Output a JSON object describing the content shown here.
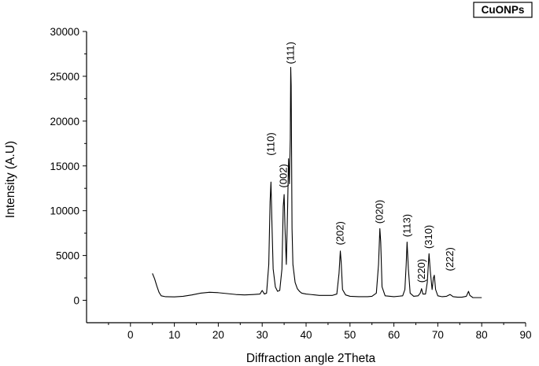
{
  "chart_data": {
    "type": "line",
    "xlabel": "Diffraction angle  2Theta",
    "ylabel": "Intensity (A.U)",
    "xlim": [
      -10,
      90
    ],
    "ylim": [
      -2500,
      30000
    ],
    "x_ticks": [
      0,
      10,
      20,
      30,
      40,
      50,
      60,
      70,
      80,
      90
    ],
    "y_ticks": [
      0,
      5000,
      10000,
      15000,
      20000,
      25000,
      30000
    ],
    "grid": false,
    "legend": {
      "label": "CuONPs",
      "position": "top-right"
    },
    "series": [
      {
        "name": "CuONPs",
        "color": "#000000",
        "points": [
          [
            5.0,
            3000
          ],
          [
            5.5,
            2400
          ],
          [
            6.0,
            1600
          ],
          [
            6.5,
            900
          ],
          [
            7.0,
            500
          ],
          [
            8.0,
            400
          ],
          [
            10.0,
            380
          ],
          [
            12.0,
            450
          ],
          [
            14.0,
            600
          ],
          [
            16.0,
            800
          ],
          [
            18.0,
            900
          ],
          [
            20.0,
            850
          ],
          [
            22.0,
            750
          ],
          [
            24.0,
            650
          ],
          [
            26.0,
            600
          ],
          [
            28.0,
            650
          ],
          [
            29.5,
            700
          ],
          [
            30.0,
            1100
          ],
          [
            30.5,
            700
          ],
          [
            31.0,
            800
          ],
          [
            31.5,
            4000
          ],
          [
            31.8,
            11000
          ],
          [
            32.0,
            13200
          ],
          [
            32.2,
            9000
          ],
          [
            32.5,
            3500
          ],
          [
            33.0,
            1500
          ],
          [
            33.5,
            1000
          ],
          [
            34.0,
            1100
          ],
          [
            34.5,
            3500
          ],
          [
            34.8,
            10500
          ],
          [
            35.0,
            11800
          ],
          [
            35.2,
            8000
          ],
          [
            35.5,
            4000
          ],
          [
            35.8,
            10500
          ],
          [
            36.0,
            15800
          ],
          [
            36.2,
            13000
          ],
          [
            36.4,
            18000
          ],
          [
            36.5,
            26000
          ],
          [
            36.6,
            24000
          ],
          [
            36.8,
            8000
          ],
          [
            37.0,
            4000
          ],
          [
            37.5,
            2000
          ],
          [
            38.0,
            1300
          ],
          [
            38.5,
            1000
          ],
          [
            39.0,
            800
          ],
          [
            40.0,
            700
          ],
          [
            41.0,
            650
          ],
          [
            42.0,
            600
          ],
          [
            43.0,
            550
          ],
          [
            44.0,
            550
          ],
          [
            45.0,
            550
          ],
          [
            46.0,
            550
          ],
          [
            47.0,
            700
          ],
          [
            47.5,
            3000
          ],
          [
            47.8,
            5500
          ],
          [
            48.0,
            4200
          ],
          [
            48.3,
            1200
          ],
          [
            49.0,
            600
          ],
          [
            50.0,
            450
          ],
          [
            52.0,
            400
          ],
          [
            54.0,
            400
          ],
          [
            55.0,
            450
          ],
          [
            56.0,
            800
          ],
          [
            56.5,
            4000
          ],
          [
            56.8,
            8000
          ],
          [
            57.0,
            6500
          ],
          [
            57.3,
            1500
          ],
          [
            58.0,
            500
          ],
          [
            60.0,
            400
          ],
          [
            62.0,
            500
          ],
          [
            62.5,
            1200
          ],
          [
            62.8,
            4000
          ],
          [
            63.0,
            6500
          ],
          [
            63.3,
            3500
          ],
          [
            63.7,
            800
          ],
          [
            64.5,
            450
          ],
          [
            65.5,
            500
          ],
          [
            66.0,
            800
          ],
          [
            66.3,
            1300
          ],
          [
            66.6,
            700
          ],
          [
            67.2,
            700
          ],
          [
            67.6,
            2000
          ],
          [
            68.0,
            5200
          ],
          [
            68.3,
            3200
          ],
          [
            68.7,
            1200
          ],
          [
            69.0,
            2500
          ],
          [
            69.2,
            2800
          ],
          [
            69.5,
            1200
          ],
          [
            70.0,
            500
          ],
          [
            71.0,
            400
          ],
          [
            72.0,
            450
          ],
          [
            72.8,
            650
          ],
          [
            73.5,
            400
          ],
          [
            74.5,
            350
          ],
          [
            75.5,
            350
          ],
          [
            76.5,
            450
          ],
          [
            77.0,
            1000
          ],
          [
            77.3,
            550
          ],
          [
            78.0,
            300
          ],
          [
            79.0,
            300
          ],
          [
            80.0,
            300
          ]
        ]
      }
    ],
    "peak_labels": [
      {
        "text": "(110)",
        "x": 32.0,
        "y": 15800
      },
      {
        "text": "(002)",
        "x": 34.9,
        "y": 12200
      },
      {
        "text": "(111)",
        "x": 36.5,
        "y": 26000
      },
      {
        "text": "(202)",
        "x": 47.8,
        "y": 5800
      },
      {
        "text": "(020)",
        "x": 56.8,
        "y": 8200
      },
      {
        "text": "(113)",
        "x": 63.0,
        "y": 6700
      },
      {
        "text": "(220)",
        "x": 66.3,
        "y": 1600
      },
      {
        "text": "(310)",
        "x": 68.0,
        "y": 5400
      },
      {
        "text": "(222)",
        "x": 72.8,
        "y": 2900
      }
    ]
  }
}
